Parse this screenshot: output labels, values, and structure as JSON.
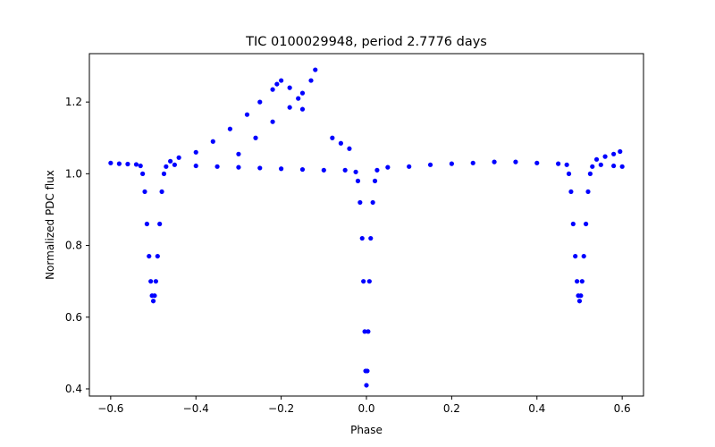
{
  "chart_data": {
    "type": "scatter",
    "title": "TIC 0100029948, period 2.7776 days",
    "xlabel": "Phase",
    "ylabel": "Normalized PDC flux",
    "xlim": [
      -0.65,
      0.65
    ],
    "ylim": [
      0.38,
      1.335
    ],
    "xticks": [
      -0.6,
      -0.4,
      -0.2,
      0.0,
      0.2,
      0.4,
      0.6
    ],
    "xtick_labels": [
      "−0.6",
      "−0.4",
      "−0.2",
      "0.0",
      "0.2",
      "0.4",
      "0.6"
    ],
    "yticks": [
      0.4,
      0.6,
      0.8,
      1.0,
      1.2
    ],
    "ytick_labels": [
      "0.4",
      "0.6",
      "0.8",
      "1.0",
      "1.2"
    ],
    "grid": false,
    "marker_color": "#0000ff",
    "series": [
      {
        "points": [
          [
            -0.6,
            1.03
          ],
          [
            -0.58,
            1.028
          ],
          [
            -0.56,
            1.027
          ],
          [
            -0.54,
            1.026
          ],
          [
            -0.53,
            1.022
          ],
          [
            -0.525,
            1.0
          ],
          [
            -0.52,
            0.95
          ],
          [
            -0.515,
            0.86
          ],
          [
            -0.51,
            0.77
          ],
          [
            -0.506,
            0.7
          ],
          [
            -0.503,
            0.66
          ],
          [
            -0.5,
            0.645
          ],
          [
            -0.497,
            0.66
          ],
          [
            -0.494,
            0.7
          ],
          [
            -0.49,
            0.77
          ],
          [
            -0.485,
            0.86
          ],
          [
            -0.48,
            0.95
          ],
          [
            -0.475,
            1.0
          ],
          [
            -0.47,
            1.02
          ],
          [
            -0.45,
            1.025
          ],
          [
            -0.4,
            1.022
          ],
          [
            -0.35,
            1.02
          ],
          [
            -0.3,
            1.018
          ],
          [
            -0.25,
            1.016
          ],
          [
            -0.2,
            1.014
          ],
          [
            -0.15,
            1.012
          ],
          [
            -0.1,
            1.01
          ],
          [
            -0.05,
            1.01
          ],
          [
            -0.025,
            1.005
          ],
          [
            -0.02,
            0.98
          ],
          [
            -0.015,
            0.92
          ],
          [
            -0.01,
            0.82
          ],
          [
            -0.007,
            0.7
          ],
          [
            -0.004,
            0.56
          ],
          [
            -0.002,
            0.45
          ],
          [
            0.0,
            0.41
          ],
          [
            0.002,
            0.45
          ],
          [
            0.004,
            0.56
          ],
          [
            0.007,
            0.7
          ],
          [
            0.01,
            0.82
          ],
          [
            0.015,
            0.92
          ],
          [
            0.02,
            0.98
          ],
          [
            0.025,
            1.01
          ],
          [
            0.05,
            1.018
          ],
          [
            0.1,
            1.02
          ],
          [
            0.15,
            1.025
          ],
          [
            0.2,
            1.028
          ],
          [
            0.25,
            1.03
          ],
          [
            0.3,
            1.033
          ],
          [
            0.35,
            1.033
          ],
          [
            0.4,
            1.03
          ],
          [
            0.45,
            1.028
          ],
          [
            0.47,
            1.025
          ],
          [
            0.475,
            1.0
          ],
          [
            0.48,
            0.95
          ],
          [
            0.485,
            0.86
          ],
          [
            0.49,
            0.77
          ],
          [
            0.494,
            0.7
          ],
          [
            0.497,
            0.66
          ],
          [
            0.5,
            0.645
          ],
          [
            0.503,
            0.66
          ],
          [
            0.506,
            0.7
          ],
          [
            0.51,
            0.77
          ],
          [
            0.515,
            0.86
          ],
          [
            0.52,
            0.95
          ],
          [
            0.525,
            1.0
          ],
          [
            0.53,
            1.02
          ],
          [
            0.55,
            1.025
          ],
          [
            0.58,
            1.022
          ],
          [
            0.6,
            1.02
          ],
          [
            -0.46,
            1.035
          ],
          [
            -0.44,
            1.045
          ],
          [
            -0.4,
            1.06
          ],
          [
            -0.36,
            1.09
          ],
          [
            -0.32,
            1.125
          ],
          [
            -0.28,
            1.165
          ],
          [
            -0.25,
            1.2
          ],
          [
            -0.22,
            1.235
          ],
          [
            -0.21,
            1.25
          ],
          [
            -0.3,
            1.055
          ],
          [
            -0.26,
            1.1
          ],
          [
            -0.22,
            1.145
          ],
          [
            -0.18,
            1.185
          ],
          [
            -0.15,
            1.225
          ],
          [
            -0.13,
            1.26
          ],
          [
            -0.12,
            1.29
          ],
          [
            -0.2,
            1.26
          ],
          [
            -0.18,
            1.24
          ],
          [
            -0.16,
            1.21
          ],
          [
            -0.15,
            1.18
          ],
          [
            -0.08,
            1.1
          ],
          [
            -0.06,
            1.085
          ],
          [
            -0.04,
            1.07
          ],
          [
            0.54,
            1.04
          ],
          [
            0.56,
            1.048
          ],
          [
            0.58,
            1.055
          ],
          [
            0.595,
            1.062
          ]
        ]
      }
    ]
  }
}
